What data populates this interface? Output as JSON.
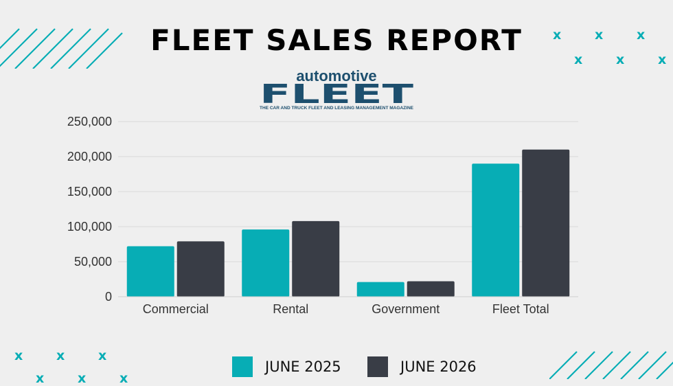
{
  "title": "FLEET SALES REPORT",
  "logo": {
    "top_word": "automotive",
    "main_word": "FLEET",
    "tagline": "THE CAR AND TRUCK FLEET AND LEASING MANAGEMENT MAGAZINE"
  },
  "decor": {
    "mark": "x"
  },
  "colors": {
    "teal": "#07adb5",
    "dark": "#393d46",
    "background": "#efefef"
  },
  "chart_data": {
    "type": "bar",
    "title": "",
    "xlabel": "",
    "ylabel": "",
    "categories": [
      "Commercial",
      "Rental",
      "Government",
      "Fleet Total"
    ],
    "series": [
      {
        "name": "JUNE 2025",
        "color": "#07adb5",
        "values": [
          72000,
          96000,
          21000,
          190000
        ]
      },
      {
        "name": "JUNE 2026",
        "color": "#393d46",
        "values": [
          79000,
          108000,
          22000,
          210000
        ]
      }
    ],
    "ylim": [
      0,
      250000
    ],
    "yticks": [
      0,
      50000,
      100000,
      150000,
      200000,
      250000
    ],
    "ytick_labels": [
      "0",
      "50,000",
      "100,000",
      "150,000",
      "200,000",
      "250,000"
    ],
    "grid": true,
    "legend_position": "bottom-center"
  }
}
